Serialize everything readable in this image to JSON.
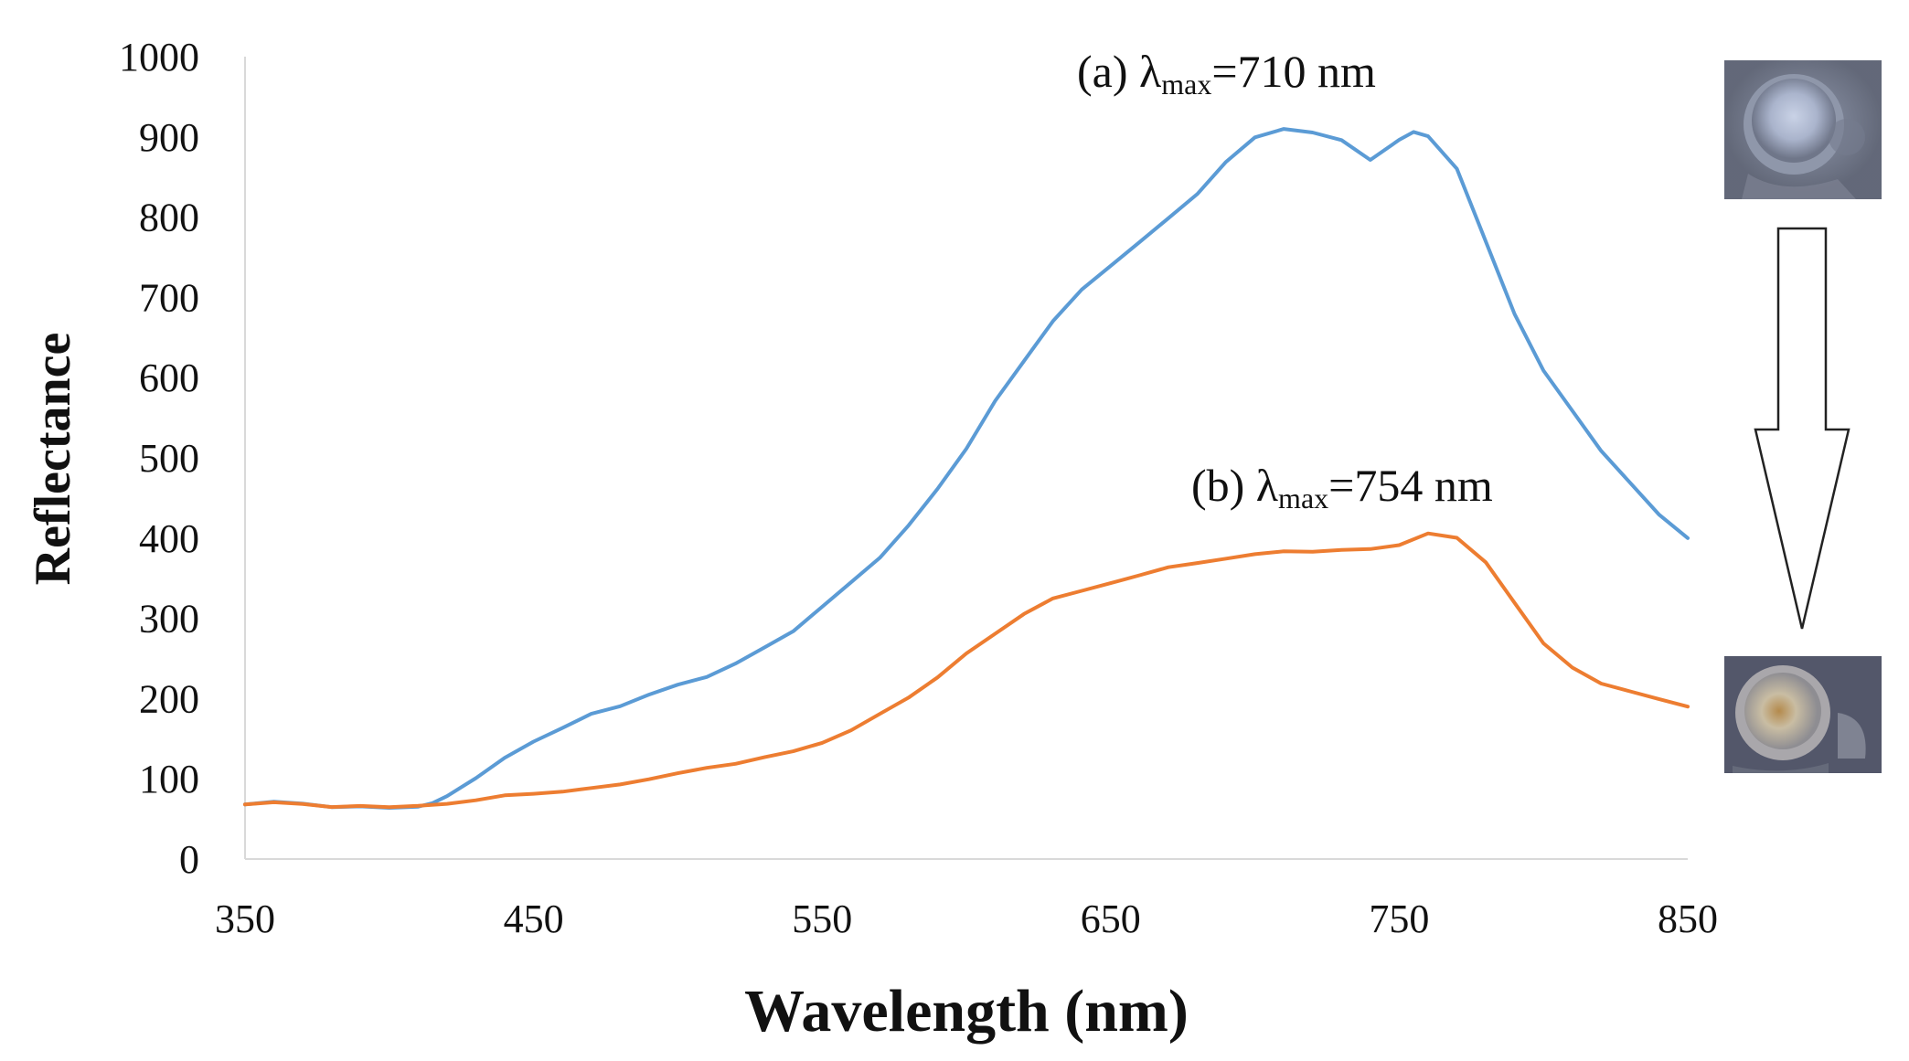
{
  "chart_data": {
    "type": "line",
    "title": "",
    "xlabel": "Wavelength (nm)",
    "ylabel": "Reflectance",
    "xlim": [
      350,
      850
    ],
    "ylim": [
      0,
      1000
    ],
    "x_ticks": [
      350,
      450,
      550,
      650,
      750,
      850
    ],
    "y_ticks": [
      0,
      100,
      200,
      300,
      400,
      500,
      600,
      700,
      800,
      900,
      1000
    ],
    "grid": false,
    "legend": "none",
    "series": [
      {
        "name": "(a)",
        "color": "#5B9BD5",
        "x": [
          350,
          360,
          370,
          380,
          390,
          400,
          410,
          415,
          420,
          430,
          440,
          450,
          460,
          470,
          480,
          490,
          500,
          510,
          520,
          530,
          540,
          550,
          560,
          570,
          580,
          590,
          600,
          610,
          620,
          630,
          640,
          650,
          660,
          670,
          680,
          690,
          700,
          710,
          720,
          730,
          740,
          750,
          755,
          760,
          770,
          780,
          790,
          800,
          810,
          820,
          830,
          840,
          850
        ],
        "y": [
          68,
          72,
          70,
          66,
          67,
          65,
          66,
          70,
          78,
          100,
          125,
          145,
          162,
          180,
          190,
          205,
          218,
          228,
          245,
          265,
          285,
          315,
          345,
          375,
          415,
          460,
          510,
          570,
          620,
          670,
          710,
          740,
          770,
          800,
          830,
          870,
          900,
          910,
          905,
          895,
          870,
          895,
          905,
          900,
          860,
          770,
          680,
          610,
          560,
          510,
          470,
          430,
          400
        ]
      },
      {
        "name": "(b)",
        "color": "#ED7D31",
        "x": [
          350,
          360,
          370,
          380,
          390,
          400,
          410,
          420,
          430,
          440,
          450,
          460,
          470,
          480,
          490,
          500,
          510,
          520,
          530,
          540,
          550,
          560,
          570,
          580,
          590,
          600,
          610,
          620,
          630,
          640,
          650,
          660,
          670,
          680,
          690,
          700,
          710,
          720,
          730,
          740,
          750,
          760,
          770,
          780,
          790,
          800,
          810,
          820,
          830,
          840,
          850
        ],
        "y": [
          68,
          72,
          70,
          66,
          67,
          65,
          66,
          68,
          72,
          78,
          80,
          83,
          88,
          93,
          100,
          108,
          115,
          120,
          128,
          135,
          145,
          160,
          180,
          200,
          225,
          255,
          280,
          305,
          325,
          335,
          345,
          355,
          365,
          370,
          375,
          380,
          383,
          382,
          384,
          385,
          390,
          405,
          400,
          370,
          320,
          270,
          240,
          220,
          210,
          200,
          190
        ]
      }
    ],
    "annotations": [
      {
        "label": "(a) λ",
        "sub": "max",
        "suffix": "=710 nm"
      },
      {
        "label": "(b) λ",
        "sub": "max",
        "suffix": "=754 nm"
      }
    ],
    "inset": {
      "top_image": "sample-photo-before",
      "bottom_image": "sample-photo-after",
      "arrow": "down-arrow-icon"
    }
  }
}
